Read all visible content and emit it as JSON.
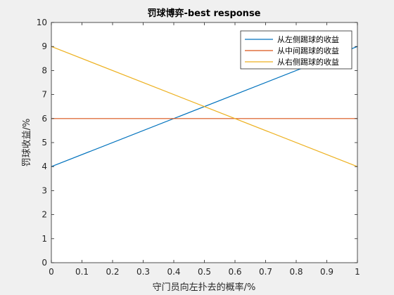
{
  "chart_data": {
    "type": "line",
    "title": "罚球博弈-best response",
    "xlabel": "守门员向左扑去的概率/%",
    "ylabel": "罚球收益/%",
    "xlim": [
      0,
      1
    ],
    "ylim": [
      0,
      10
    ],
    "xticks": [
      "0",
      "0.1",
      "0.2",
      "0.3",
      "0.4",
      "0.5",
      "0.6",
      "0.7",
      "0.8",
      "0.9",
      "1"
    ],
    "yticks": [
      "0",
      "1",
      "2",
      "3",
      "4",
      "5",
      "6",
      "7",
      "8",
      "9",
      "10"
    ],
    "grid": false,
    "legend_position": "top-right",
    "series": [
      {
        "name": "从左侧踢球的收益",
        "x": [
          0,
          1
        ],
        "y": [
          4,
          9
        ],
        "color": "#0072BD"
      },
      {
        "name": "从中间踢球的收益",
        "x": [
          0,
          1
        ],
        "y": [
          6,
          6
        ],
        "color": "#D95319"
      },
      {
        "name": "从右侧踢球的收益",
        "x": [
          0,
          1
        ],
        "y": [
          9,
          4
        ],
        "color": "#EDB120"
      }
    ]
  }
}
